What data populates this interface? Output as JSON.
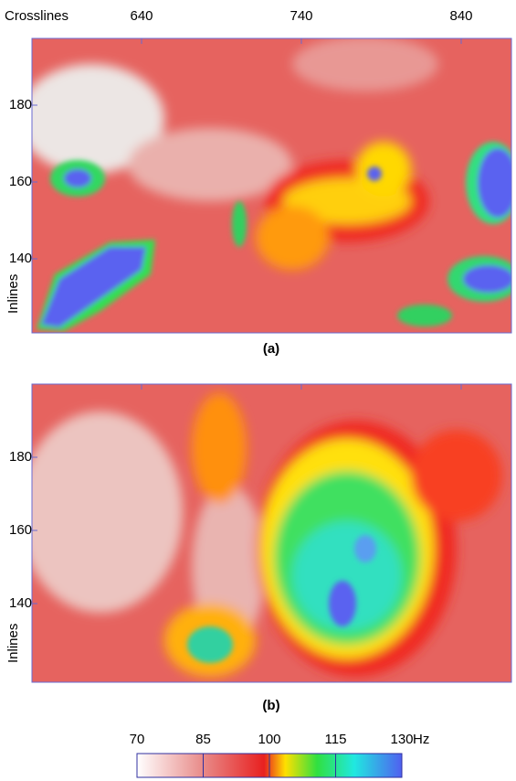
{
  "x_axis_label": "Crosslines",
  "y_axis_label": "Inlines",
  "xticks": [
    640,
    740,
    840
  ],
  "yticks": [
    180,
    160,
    140
  ],
  "panels": [
    "(a)",
    "(b)"
  ],
  "colorbar": {
    "ticks": [
      70,
      85,
      100,
      115,
      130
    ],
    "unit": "Hz"
  }
}
